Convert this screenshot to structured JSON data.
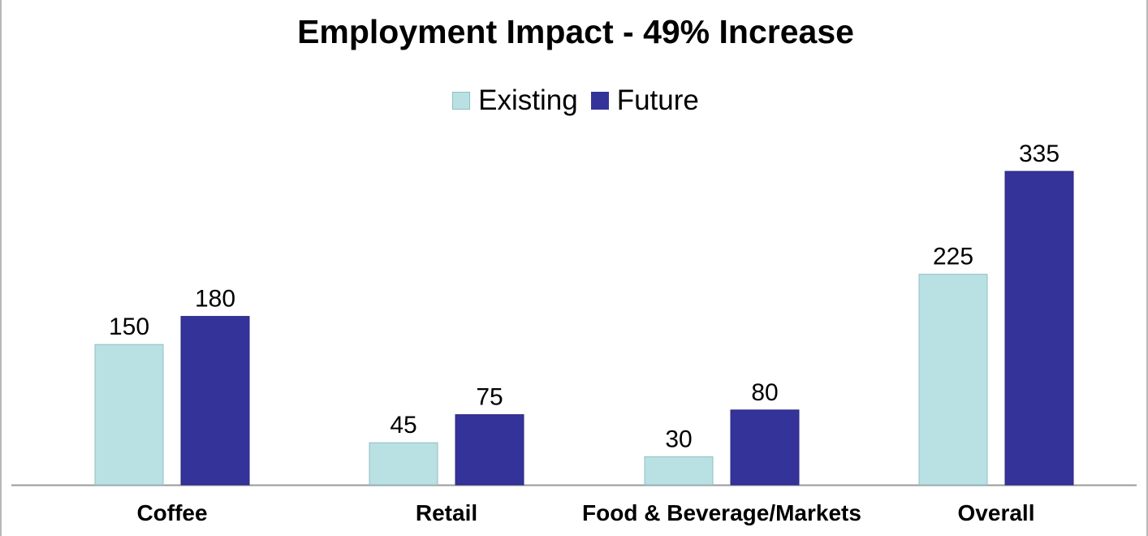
{
  "chart_data": {
    "type": "bar",
    "title": "Employment Impact - 49% Increase",
    "xlabel": "",
    "ylabel": "",
    "categories": [
      "Coffee",
      "Retail",
      "Food & Beverage/Markets",
      "Overall"
    ],
    "series": [
      {
        "name": "Existing",
        "values": [
          150,
          45,
          30,
          225
        ],
        "color": "#b9e0e3"
      },
      {
        "name": "Future",
        "values": [
          180,
          75,
          80,
          335
        ],
        "color": "#343399"
      }
    ],
    "ylim": [
      0,
      350
    ],
    "grid": false,
    "legend_position": "top-center",
    "data_labels": true
  }
}
